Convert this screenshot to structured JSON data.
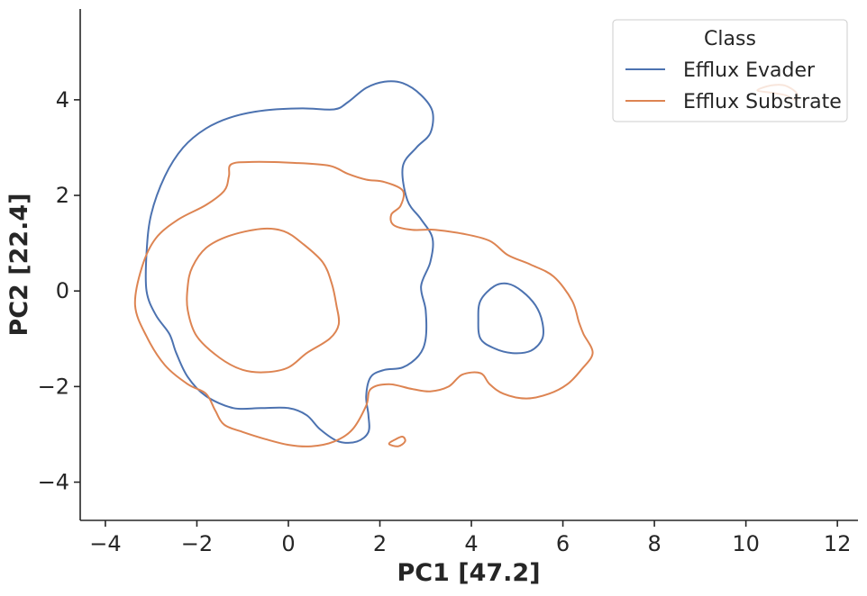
{
  "chart_data": {
    "type": "line",
    "subtype": "kde-contour",
    "title": "",
    "xlabel": "PC1 [47.2]",
    "ylabel": "PC2 [22.4]",
    "xlim": [
      -4.55,
      12.45
    ],
    "ylim": [
      -4.8,
      5.9
    ],
    "xticks": [
      -4,
      -2,
      0,
      2,
      4,
      6,
      8,
      10,
      12
    ],
    "yticks": [
      -4,
      -2,
      0,
      2,
      4
    ],
    "xtick_labels": [
      "−4",
      "−2",
      "0",
      "2",
      "4",
      "6",
      "8",
      "10",
      "12"
    ],
    "ytick_labels": [
      "−4",
      "−2",
      "0",
      "2",
      "4"
    ],
    "legend": {
      "title": "Class",
      "location": "upper right"
    },
    "series": [
      {
        "name": "Efflux Evader",
        "color": "#4c72b0",
        "contours": [
          [
            [
              -3.1,
              0.8
            ],
            [
              -3.0,
              1.6
            ],
            [
              -2.7,
              2.4
            ],
            [
              -2.3,
              3.0
            ],
            [
              -1.8,
              3.4
            ],
            [
              -1.2,
              3.65
            ],
            [
              -0.5,
              3.78
            ],
            [
              0.3,
              3.82
            ],
            [
              1.0,
              3.8
            ],
            [
              1.3,
              3.95
            ],
            [
              1.7,
              4.25
            ],
            [
              2.1,
              4.38
            ],
            [
              2.5,
              4.35
            ],
            [
              2.9,
              4.1
            ],
            [
              3.15,
              3.75
            ],
            [
              3.1,
              3.3
            ],
            [
              2.8,
              3.0
            ],
            [
              2.5,
              2.6
            ],
            [
              2.6,
              1.9
            ],
            [
              2.9,
              1.5
            ],
            [
              3.15,
              1.1
            ],
            [
              3.1,
              0.6
            ],
            [
              2.9,
              0.1
            ],
            [
              3.0,
              -0.4
            ],
            [
              3.0,
              -1.0
            ],
            [
              2.85,
              -1.35
            ],
            [
              2.5,
              -1.6
            ],
            [
              2.1,
              -1.65
            ],
            [
              1.8,
              -1.8
            ],
            [
              1.7,
              -2.2
            ],
            [
              1.75,
              -2.6
            ],
            [
              1.75,
              -2.95
            ],
            [
              1.5,
              -3.15
            ],
            [
              1.1,
              -3.15
            ],
            [
              0.7,
              -2.9
            ],
            [
              0.4,
              -2.6
            ],
            [
              0.0,
              -2.45
            ],
            [
              -0.6,
              -2.45
            ],
            [
              -1.2,
              -2.45
            ],
            [
              -1.8,
              -2.2
            ],
            [
              -2.2,
              -1.8
            ],
            [
              -2.45,
              -1.3
            ],
            [
              -2.6,
              -0.9
            ],
            [
              -2.9,
              -0.5
            ],
            [
              -3.1,
              0.0
            ],
            [
              -3.1,
              0.8
            ]
          ],
          [
            [
              4.2,
              -0.2
            ],
            [
              4.5,
              0.1
            ],
            [
              4.8,
              0.15
            ],
            [
              5.1,
              0.0
            ],
            [
              5.4,
              -0.3
            ],
            [
              5.55,
              -0.65
            ],
            [
              5.55,
              -1.0
            ],
            [
              5.3,
              -1.25
            ],
            [
              4.9,
              -1.3
            ],
            [
              4.5,
              -1.2
            ],
            [
              4.2,
              -1.0
            ],
            [
              4.15,
              -0.6
            ],
            [
              4.2,
              -0.2
            ]
          ]
        ]
      },
      {
        "name": "Efflux Substrate",
        "color": "#dd8452",
        "contours": [
          [
            [
              -1.8,
              0.9
            ],
            [
              -1.3,
              1.15
            ],
            [
              -0.6,
              1.3
            ],
            [
              -0.1,
              1.25
            ],
            [
              0.3,
              1.0
            ],
            [
              0.75,
              0.6
            ],
            [
              0.95,
              0.15
            ],
            [
              1.05,
              -0.3
            ],
            [
              1.1,
              -0.7
            ],
            [
              0.9,
              -1.0
            ],
            [
              0.4,
              -1.3
            ],
            [
              0.0,
              -1.6
            ],
            [
              -0.5,
              -1.7
            ],
            [
              -1.0,
              -1.65
            ],
            [
              -1.5,
              -1.4
            ],
            [
              -2.0,
              -0.95
            ],
            [
              -2.2,
              -0.4
            ],
            [
              -2.2,
              0.1
            ],
            [
              -2.1,
              0.5
            ],
            [
              -1.8,
              0.9
            ]
          ],
          [
            [
              -3.2,
              0.5
            ],
            [
              -2.9,
              1.1
            ],
            [
              -2.4,
              1.5
            ],
            [
              -1.8,
              1.8
            ],
            [
              -1.4,
              2.1
            ],
            [
              -1.3,
              2.4
            ],
            [
              -1.25,
              2.65
            ],
            [
              -0.8,
              2.7
            ],
            [
              0.1,
              2.68
            ],
            [
              0.9,
              2.62
            ],
            [
              1.3,
              2.45
            ],
            [
              1.7,
              2.33
            ],
            [
              2.1,
              2.28
            ],
            [
              2.5,
              2.1
            ],
            [
              2.45,
              1.78
            ],
            [
              2.25,
              1.6
            ],
            [
              2.3,
              1.38
            ],
            [
              2.7,
              1.28
            ],
            [
              3.2,
              1.28
            ],
            [
              3.8,
              1.2
            ],
            [
              4.4,
              1.05
            ],
            [
              4.8,
              0.75
            ],
            [
              5.3,
              0.55
            ],
            [
              5.8,
              0.3
            ],
            [
              6.2,
              -0.2
            ],
            [
              6.35,
              -0.65
            ],
            [
              6.45,
              -0.9
            ],
            [
              6.65,
              -1.3
            ],
            [
              6.4,
              -1.65
            ],
            [
              6.1,
              -1.95
            ],
            [
              5.7,
              -2.15
            ],
            [
              5.2,
              -2.25
            ],
            [
              4.7,
              -2.15
            ],
            [
              4.4,
              -1.95
            ],
            [
              4.2,
              -1.72
            ],
            [
              3.8,
              -1.75
            ],
            [
              3.5,
              -2.0
            ],
            [
              3.1,
              -2.1
            ],
            [
              2.7,
              -2.05
            ],
            [
              2.2,
              -1.95
            ],
            [
              1.8,
              -2.05
            ],
            [
              1.7,
              -2.4
            ],
            [
              1.4,
              -2.9
            ],
            [
              1.0,
              -3.15
            ],
            [
              0.5,
              -3.25
            ],
            [
              0.0,
              -3.22
            ],
            [
              -0.5,
              -3.1
            ],
            [
              -1.0,
              -2.95
            ],
            [
              -1.4,
              -2.8
            ],
            [
              -1.6,
              -2.5
            ],
            [
              -1.8,
              -2.15
            ],
            [
              -2.2,
              -1.95
            ],
            [
              -2.7,
              -1.55
            ],
            [
              -3.1,
              -0.95
            ],
            [
              -3.35,
              -0.3
            ],
            [
              -3.2,
              0.5
            ]
          ],
          [
            [
              2.2,
              -3.2
            ],
            [
              2.35,
              -3.1
            ],
            [
              2.5,
              -3.05
            ],
            [
              2.55,
              -3.15
            ],
            [
              2.4,
              -3.25
            ],
            [
              2.2,
              -3.2
            ]
          ],
          [
            [
              10.25,
              4.2
            ],
            [
              10.55,
              4.3
            ],
            [
              10.85,
              4.3
            ],
            [
              11.1,
              4.15
            ],
            [
              11.1,
              4.0
            ],
            [
              10.85,
              4.1
            ],
            [
              10.55,
              4.15
            ],
            [
              10.25,
              4.2
            ]
          ]
        ]
      }
    ]
  }
}
